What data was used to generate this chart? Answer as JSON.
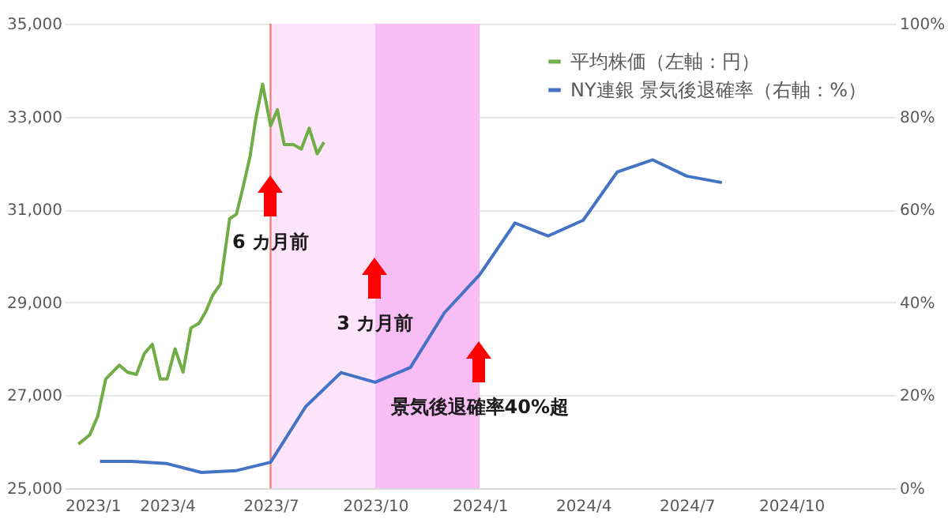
{
  "chart_data": {
    "type": "line",
    "series": [
      {
        "name": "平均株価（左軸：円）",
        "color": "#70ad47",
        "x": [
          "2023-01-13",
          "2023-01-23",
          "2023-01-30",
          "2023-02-06",
          "2023-02-18",
          "2023-02-25",
          "2023-03-05",
          "2023-03-12",
          "2023-03-19",
          "2023-03-26",
          "2023-04-01",
          "2023-04-08",
          "2023-04-15",
          "2023-04-22",
          "2023-04-29",
          "2023-05-05",
          "2023-05-11",
          "2023-05-18",
          "2023-05-26",
          "2023-06-01",
          "2023-06-07",
          "2023-06-13",
          "2023-06-18",
          "2023-06-24",
          "2023-07-01",
          "2023-07-07",
          "2023-07-13",
          "2023-07-21",
          "2023-07-28",
          "2023-08-04",
          "2023-08-11",
          "2023-08-17"
        ],
        "values": [
          25950,
          26150,
          26550,
          27350,
          27650,
          27500,
          27450,
          27900,
          28100,
          27350,
          27350,
          28000,
          27500,
          28450,
          28550,
          28800,
          29150,
          29400,
          30800,
          30900,
          31500,
          32150,
          32950,
          33700,
          32800,
          33150,
          32400,
          32400,
          32300,
          32750,
          32200,
          32450
        ]
      },
      {
        "name": "NY連銀 景気後退確率（右軸：%）",
        "color": "#4472c4",
        "axis": "y2",
        "x": [
          "2023-02",
          "2023-03",
          "2023-04",
          "2023-05",
          "2023-06",
          "2023-07",
          "2023-08",
          "2023-09",
          "2023-10",
          "2023-11",
          "2023-12",
          "2024-01",
          "2024-02",
          "2024-03",
          "2024-04",
          "2024-05",
          "2024-06",
          "2024-07",
          "2024-08"
        ],
        "values": [
          5.8,
          5.8,
          5.3,
          3.4,
          3.8,
          5.6,
          17.6,
          24.9,
          22.8,
          26,
          37.8,
          46,
          57.1,
          54.3,
          57.7,
          68.1,
          70.7,
          67.2,
          65.8
        ]
      }
    ],
    "xlim": [
      "2023-01-01",
      "2025-01-01"
    ],
    "xticks": [
      {
        "value": "2023-01",
        "label": "2023/1"
      },
      {
        "value": "2023-04",
        "label": "2023/4"
      },
      {
        "value": "2023-07",
        "label": "2023/7"
      },
      {
        "value": "2023-10",
        "label": "2023/10"
      },
      {
        "value": "2024-01",
        "label": "2024/1"
      },
      {
        "value": "2024-04",
        "label": "2024/4"
      },
      {
        "value": "2024-07",
        "label": "2024/7"
      },
      {
        "value": "2024-10",
        "label": "2024/10"
      }
    ],
    "ylim": [
      25000,
      35000
    ],
    "yticks": [
      {
        "value": 25000,
        "label": "25,000"
      },
      {
        "value": 27000,
        "label": "27,000"
      },
      {
        "value": 29000,
        "label": "29,000"
      },
      {
        "value": 31000,
        "label": "31,000"
      },
      {
        "value": 33000,
        "label": "33,000"
      },
      {
        "value": 35000,
        "label": "35,000"
      }
    ],
    "y2lim": [
      0,
      100
    ],
    "y2ticks": [
      {
        "value": 0,
        "label": "0%"
      },
      {
        "value": 20,
        "label": "20%"
      },
      {
        "value": 40,
        "label": "40%"
      },
      {
        "value": 60,
        "label": "60%"
      },
      {
        "value": 80,
        "label": "80%"
      },
      {
        "value": 100,
        "label": "100%"
      }
    ],
    "grid": "y",
    "legend": "top right",
    "bands": [
      {
        "axis": "x",
        "from": "2023-07-01",
        "to": "2023-10-01",
        "color": "#fde4fb"
      },
      {
        "axis": "x",
        "from": "2023-10-01",
        "to": "2024-01-01",
        "color": "#f9bdf5"
      }
    ],
    "ref_lines": [
      {
        "axis": "x",
        "value": "2023-07-01",
        "color": "#f08080"
      }
    ],
    "annotations": [
      {
        "text": "6 カ月前",
        "x": "2023-07-01",
        "y": 30300
      },
      {
        "text": "3 カ月前",
        "x": "2023-10-01",
        "y": 28550
      },
      {
        "text": "景気後退確率40%超",
        "x": "2024-01-01",
        "y": 26750
      }
    ]
  }
}
